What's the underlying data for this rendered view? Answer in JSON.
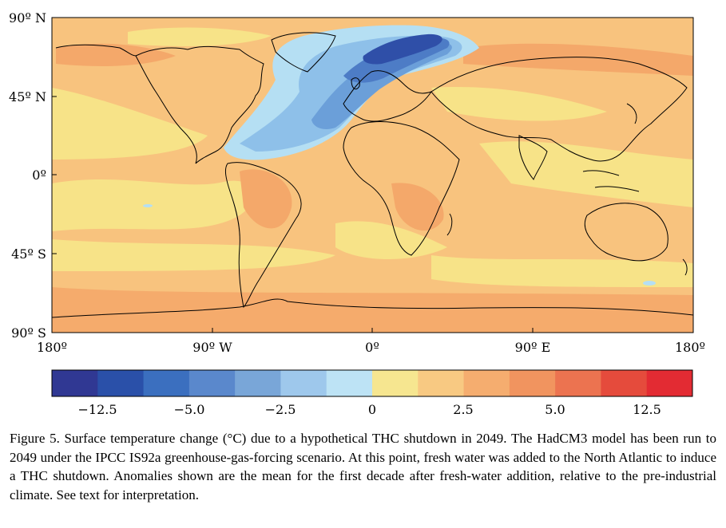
{
  "figure": {
    "caption": "Figure 5. Surface temperature change (°C) due to a hypothetical THC shutdown in 2049. The HadCM3 model has been run to 2049 under the IPCC IS92a greenhouse-gas-forcing scenario. At this point, fresh water was added to the North Atlantic to induce a THC shutdown. Anomalies shown are the mean for the first decade after fresh-water addition, relative to the pre-industrial climate. See text for interpretation."
  },
  "map": {
    "lat_labels": [
      "90º N",
      "45º N",
      "0º",
      "45º S",
      "90º S"
    ],
    "lon_labels": [
      "180º",
      "90º W",
      "0º",
      "90º E",
      "180º"
    ],
    "colors": {
      "background_warm": "#f8c37e",
      "ocean_mild": "#f7e388",
      "land_warm": "#f4a86a",
      "cold_1": "#b5dff3",
      "cold_2": "#8ec0e9",
      "cold_3": "#6b9fd9",
      "cold_4": "#4d7cc6",
      "cold_5": "#2f4fa8",
      "coast": "#000000"
    }
  },
  "colorbar": {
    "tick_labels": [
      "−12.5",
      "−5.0",
      "−2.5",
      "0",
      "2.5",
      "5.0",
      "12.5"
    ],
    "colors": [
      "#303893",
      "#2a50a9",
      "#3b6fbf",
      "#5a88cc",
      "#79a6d8",
      "#9ec8ec",
      "#bde3f5",
      "#f6e690",
      "#f8c982",
      "#f5ad6f",
      "#f1945f",
      "#ec7350",
      "#e54b3c",
      "#e32b33"
    ]
  }
}
